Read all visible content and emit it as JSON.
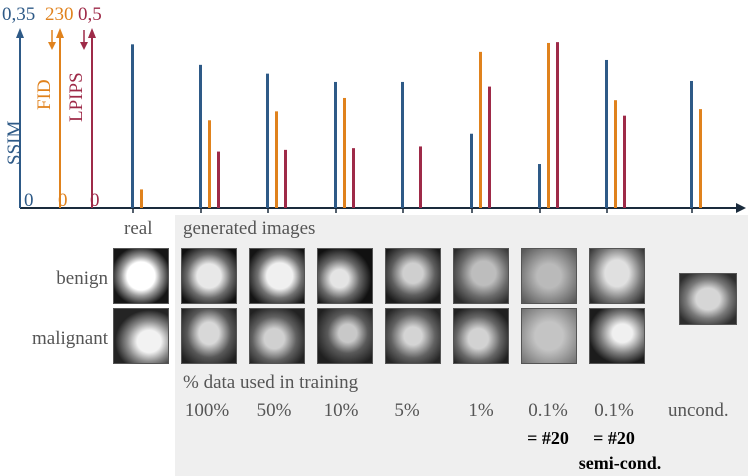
{
  "chart_data": {
    "type": "bar",
    "categories": [
      "real",
      "100%",
      "50%",
      "10%",
      "5%",
      "1%",
      "0.1% = #20",
      "0.1% = #20 semi-cond.",
      "uncond."
    ],
    "series": [
      {
        "name": "SSIM",
        "color": "#2e5a87",
        "ylim": [
          0,
          0.35
        ],
        "values": [
          0.335,
          0.293,
          0.275,
          0.258,
          0.258,
          0.152,
          0.09,
          0.303,
          0.26
        ]
      },
      {
        "name": "FID",
        "color": "#e0821d",
        "ylim": [
          0,
          230
        ],
        "values": [
          25,
          118,
          130,
          148,
          0,
          210,
          222,
          145,
          133
        ]
      },
      {
        "name": "LPIPS",
        "color": "#9e2a48",
        "ylim": [
          0,
          0.5
        ],
        "values": [
          null,
          0.165,
          0.17,
          0.175,
          0.18,
          0.355,
          0.485,
          0.27,
          null
        ]
      }
    ],
    "axis_max_labels": {
      "ssim": "0,35",
      "fid": "230",
      "lpips": "0,5"
    },
    "axis_zero_label": "0"
  },
  "labels": {
    "real": "real",
    "generated": "generated images",
    "benign": "benign",
    "malignant": "malignant",
    "pct_title": "% data used in training",
    "pcts": [
      "100%",
      "50%",
      "10%",
      "5%",
      "1%",
      "0.1%",
      "0.1%",
      "uncond."
    ],
    "eq1": "= #20",
    "eq2": "= #20",
    "semi": "semi-cond."
  }
}
